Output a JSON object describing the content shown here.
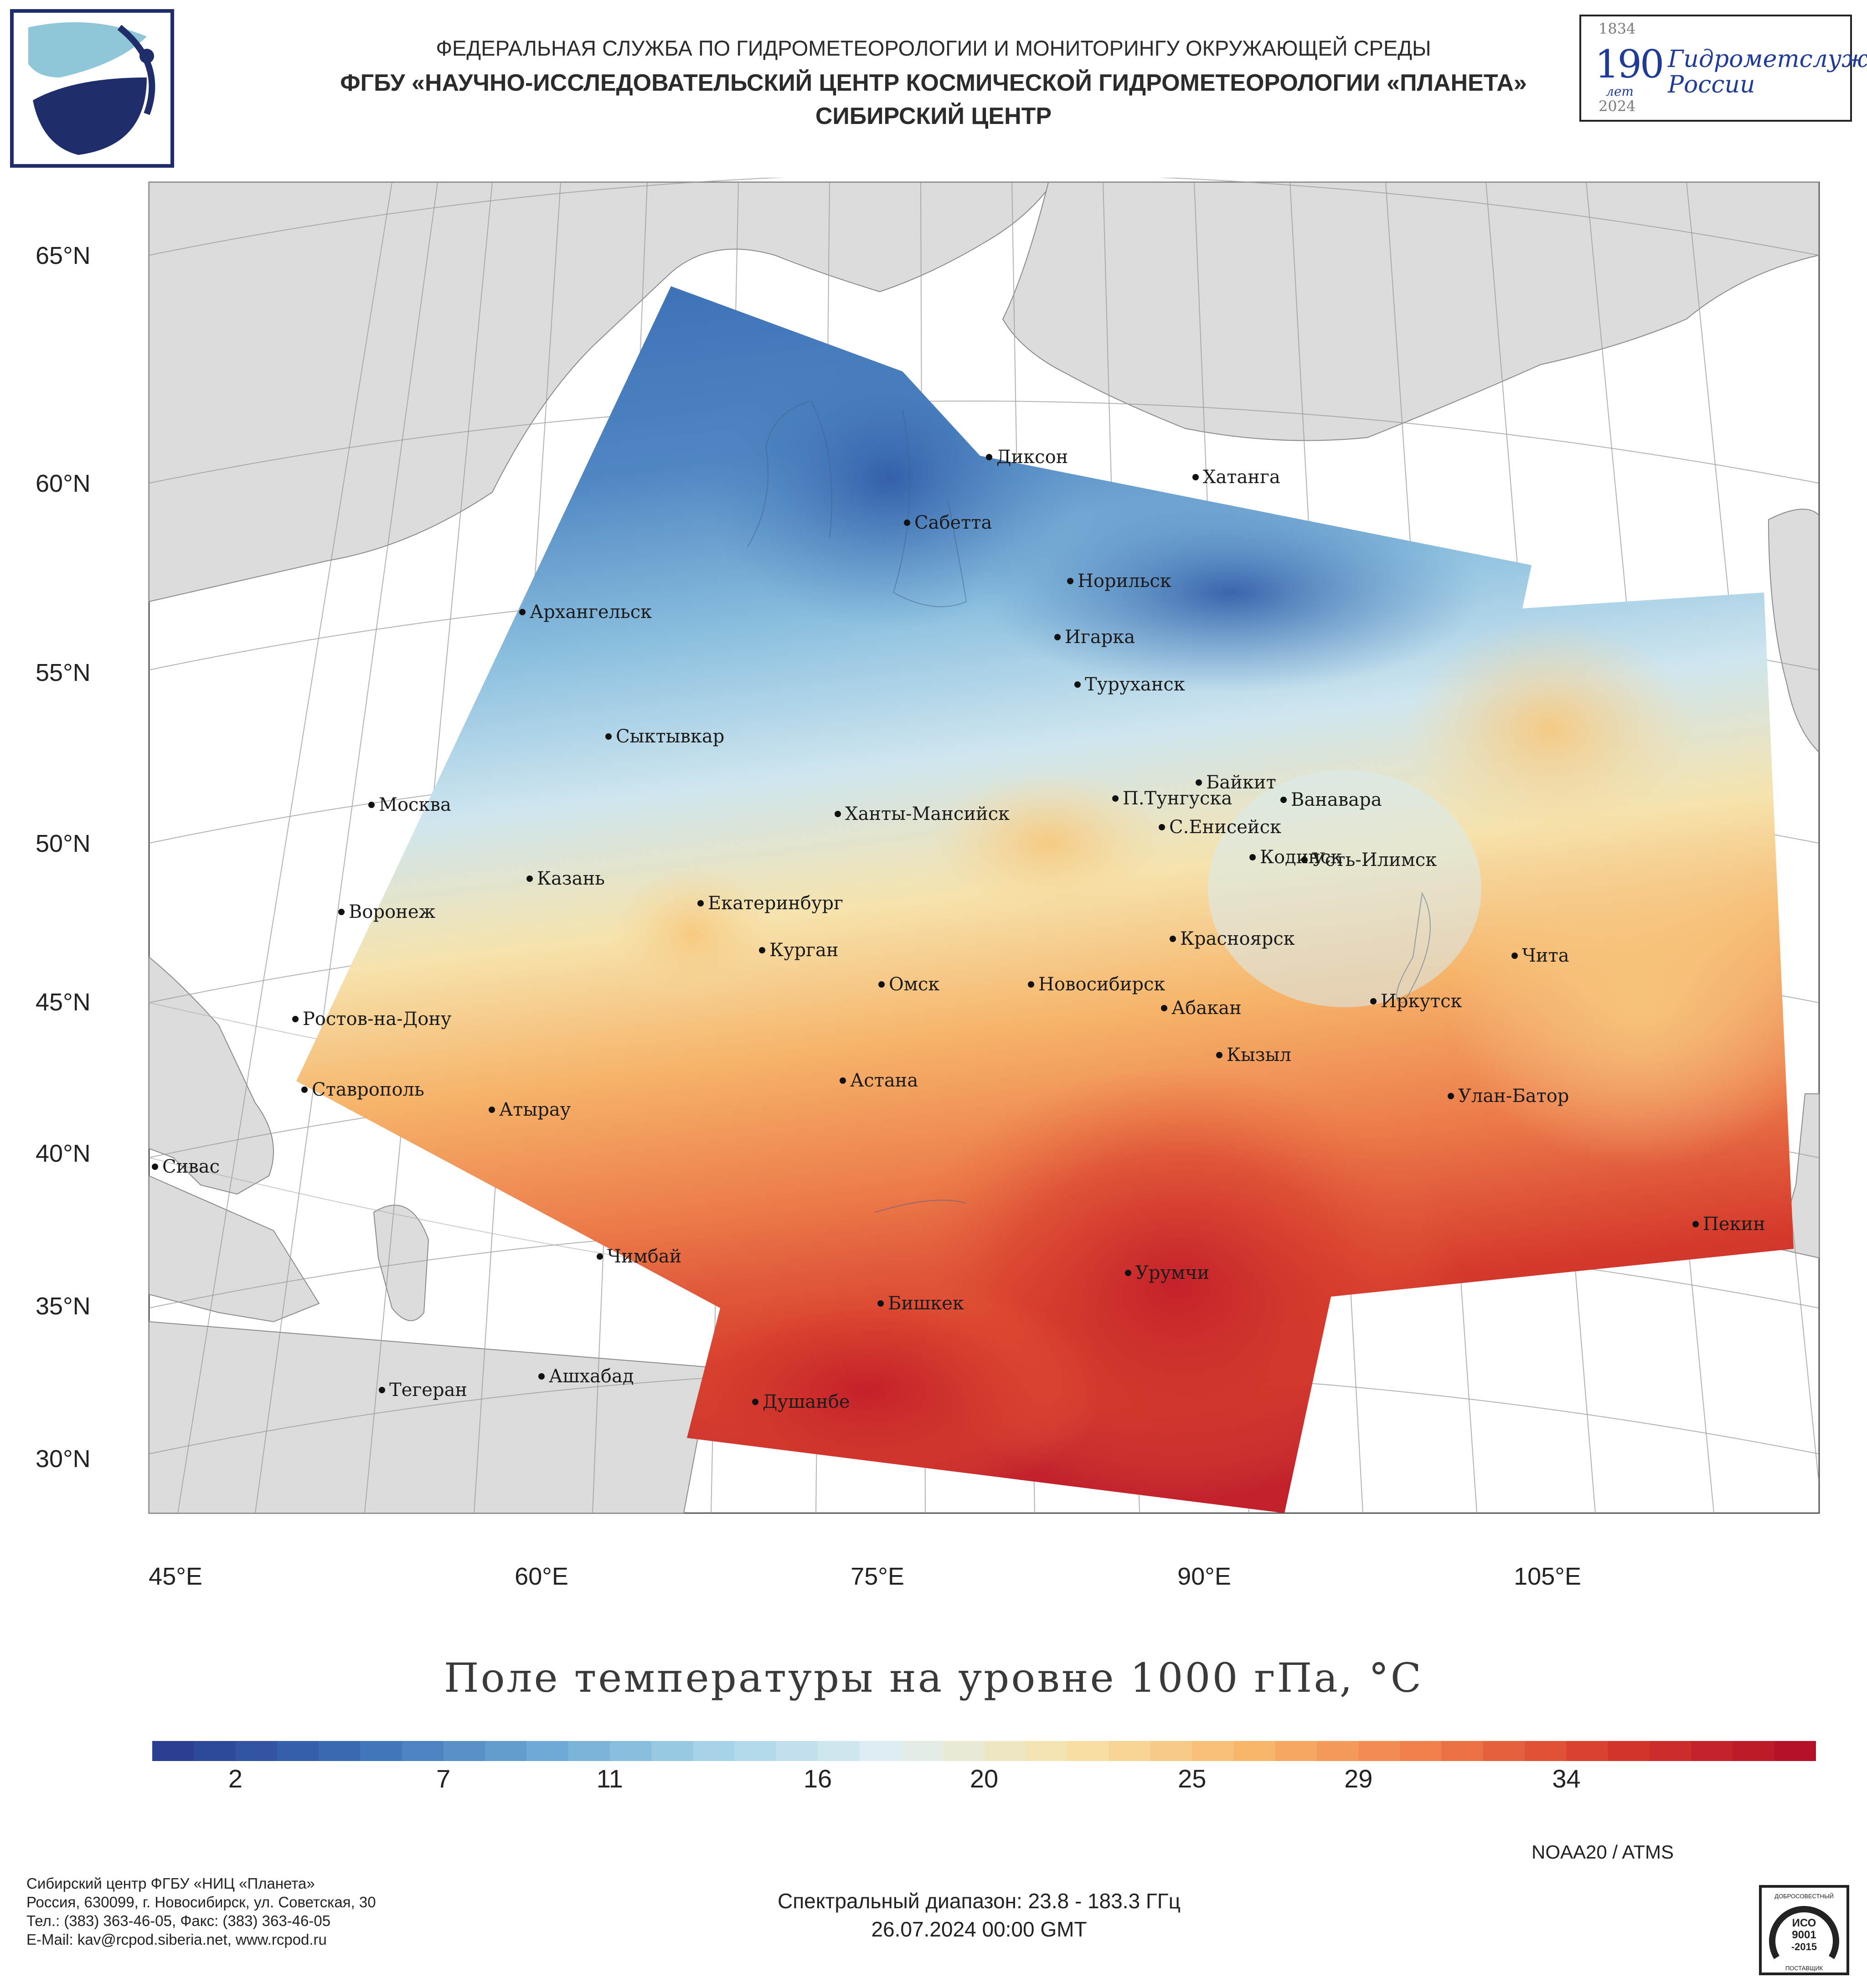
{
  "header": {
    "line1": "ФЕДЕРАЛЬНАЯ СЛУЖБА ПО ГИДРОМЕТЕОРОЛОГИИ И МОНИТОРИНГУ ОКРУЖАЮЩЕЙ СРЕДЫ",
    "line2": "ФГБУ «НАУЧНО-ИССЛЕДОВАТЕЛЬСКИЙ ЦЕНТР КОСМИЧЕСКОЙ ГИДРОМЕТЕОРОЛОГИИ «ПЛАНЕТА»",
    "line3": "СИБИРСКИЙ ЦЕНТР"
  },
  "badge": {
    "year_start": "1834",
    "number": "190",
    "number_sub": "лет",
    "org_line1": "Гидрометслужбе",
    "org_line2": "России",
    "year_end": "2024"
  },
  "map": {
    "lat_labels": [
      "65°N",
      "60°N",
      "55°N",
      "50°N",
      "45°N",
      "40°N",
      "35°N",
      "30°N"
    ],
    "lon_labels": [
      "45°E",
      "60°E",
      "75°E",
      "90°E",
      "105°E"
    ],
    "cities": [
      "Диксон",
      "Хатанга",
      "Сабетта",
      "Норильск",
      "Архангельск",
      "Игарка",
      "Туруханск",
      "Сыктывкар",
      "Байкит",
      "П.Тунгуска",
      "Ванавара",
      "Москва",
      "Ханты-Мансийск",
      "С.Енисейск",
      "Кодинск",
      "Усть-Илимск",
      "Казань",
      "Екатеринбург",
      "Воронеж",
      "Красноярск",
      "Курган",
      "Чита",
      "Омск",
      "Новосибирск",
      "Иркутск",
      "Ростов-на-Дону",
      "Абакан",
      "Кызыл",
      "Астана",
      "Ставрополь",
      "Улан-Батор",
      "Атырау",
      "Сивас",
      "Пекин",
      "Чимбай",
      "Урумчи",
      "Бишкек",
      "Ашхабад",
      "Тегеран",
      "Душанбе"
    ]
  },
  "colors": {
    "land": "#dcdcdc",
    "sea": "#ffffff",
    "scale": [
      "#2c3e93",
      "#3b6db5",
      "#6aa6d3",
      "#a6d3e8",
      "#e0eef1",
      "#f8e1a8",
      "#f8b66a",
      "#ef7a48",
      "#d6372a",
      "#b5122a"
    ]
  },
  "title": "Поле температуры на уровне 1000 гПа, °C",
  "colorbar": {
    "min": 0,
    "max": 40,
    "ticks": [
      "2",
      "7",
      "11",
      "16",
      "20",
      "25",
      "29",
      "34"
    ]
  },
  "sensor": "NOAA20 / ATMS",
  "footer": {
    "org": "Сибирский центр ФГБУ «НИЦ «Планета»",
    "address": "Россия, 630099, г. Новосибирск, ул. Советская, 30",
    "phone": "Тел.: (383) 363-46-05, Факс: (383) 363-46-05",
    "email": "E-Mail: kav@rcpod.siberia.net, www.rcpod.ru",
    "spectral": "Спектральный диапазон: 23.8 - 183.3 ГГц",
    "datetime": "26.07.2024 00:00 GMT"
  },
  "iso_badge": {
    "top": "ДОБРОСОВЕСТНЫЙ",
    "line1": "ИСО",
    "line2": "9001",
    "line3": "-2015",
    "bottom": "ПОСТАВЩИК"
  }
}
